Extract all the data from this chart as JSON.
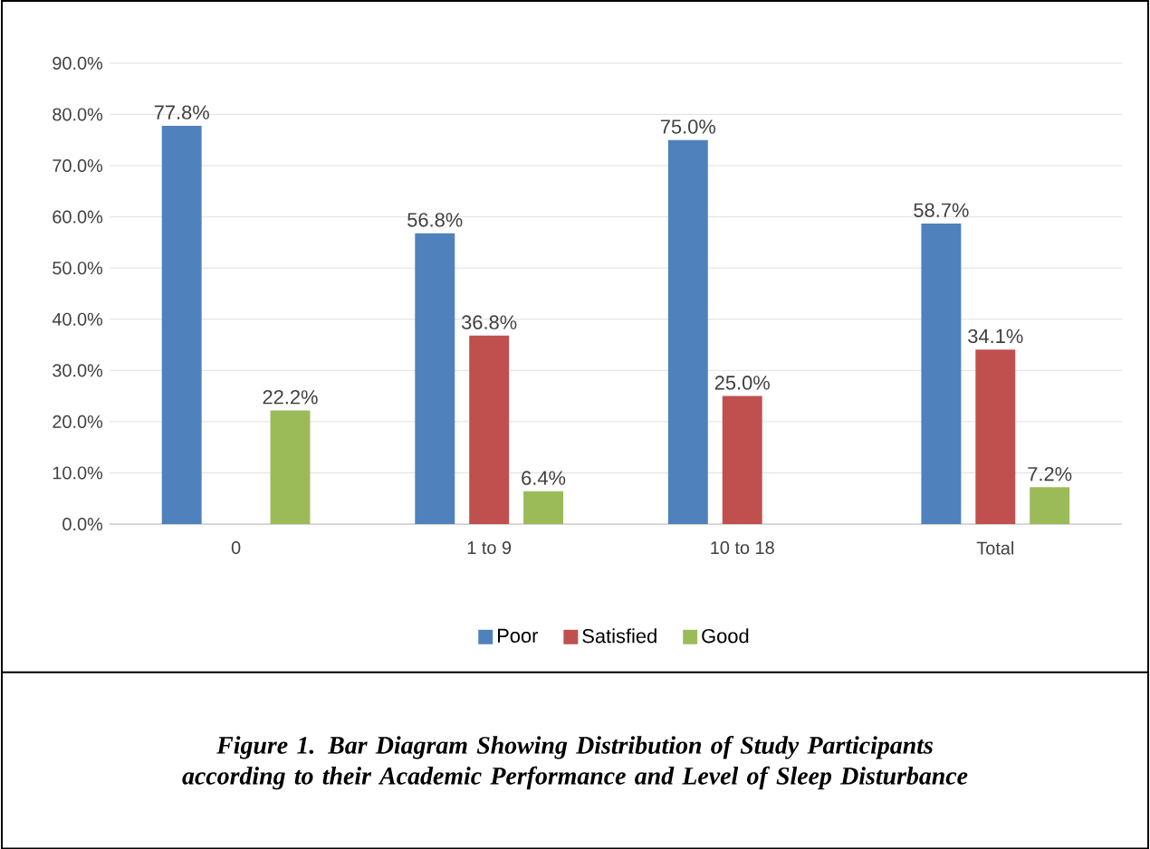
{
  "chart_data": {
    "type": "bar",
    "categories": [
      "0",
      "1 to 9",
      "10 to 18",
      "Total"
    ],
    "series": [
      {
        "name": "Poor",
        "color": "#4f81bd",
        "values": [
          77.8,
          56.8,
          75.0,
          58.7
        ],
        "value_labels": [
          "77.8%",
          "56.8%",
          "75.0%",
          "58.7%"
        ]
      },
      {
        "name": "Satisfied",
        "color": "#c0504d",
        "values": [
          null,
          36.8,
          25.0,
          34.1
        ],
        "value_labels": [
          null,
          "36.8%",
          "25.0%",
          "34.1%"
        ]
      },
      {
        "name": "Good",
        "color": "#9bbb59",
        "values": [
          22.2,
          6.4,
          null,
          7.2
        ],
        "value_labels": [
          "22.2%",
          "6.4%",
          null,
          "7.2%"
        ]
      }
    ],
    "ylim": [
      0,
      90
    ],
    "yticks": [
      {
        "value": 0,
        "label": "0.0%"
      },
      {
        "value": 10,
        "label": "10.0%"
      },
      {
        "value": 20,
        "label": "20.0%"
      },
      {
        "value": 30,
        "label": "30.0%"
      },
      {
        "value": 40,
        "label": "40.0%"
      },
      {
        "value": 50,
        "label": "50.0%"
      },
      {
        "value": 60,
        "label": "60.0%"
      },
      {
        "value": 70,
        "label": "70.0%"
      },
      {
        "value": 80,
        "label": "80.0%"
      },
      {
        "value": 90,
        "label": "90.0%"
      }
    ],
    "grid": "y",
    "legend": "bottom",
    "annotations": [
      "**Figure 1. Bar Diagram Showing Distribution of Study Participants according to their Academic Performance and Level of Sleep Disturbance**"
    ]
  }
}
